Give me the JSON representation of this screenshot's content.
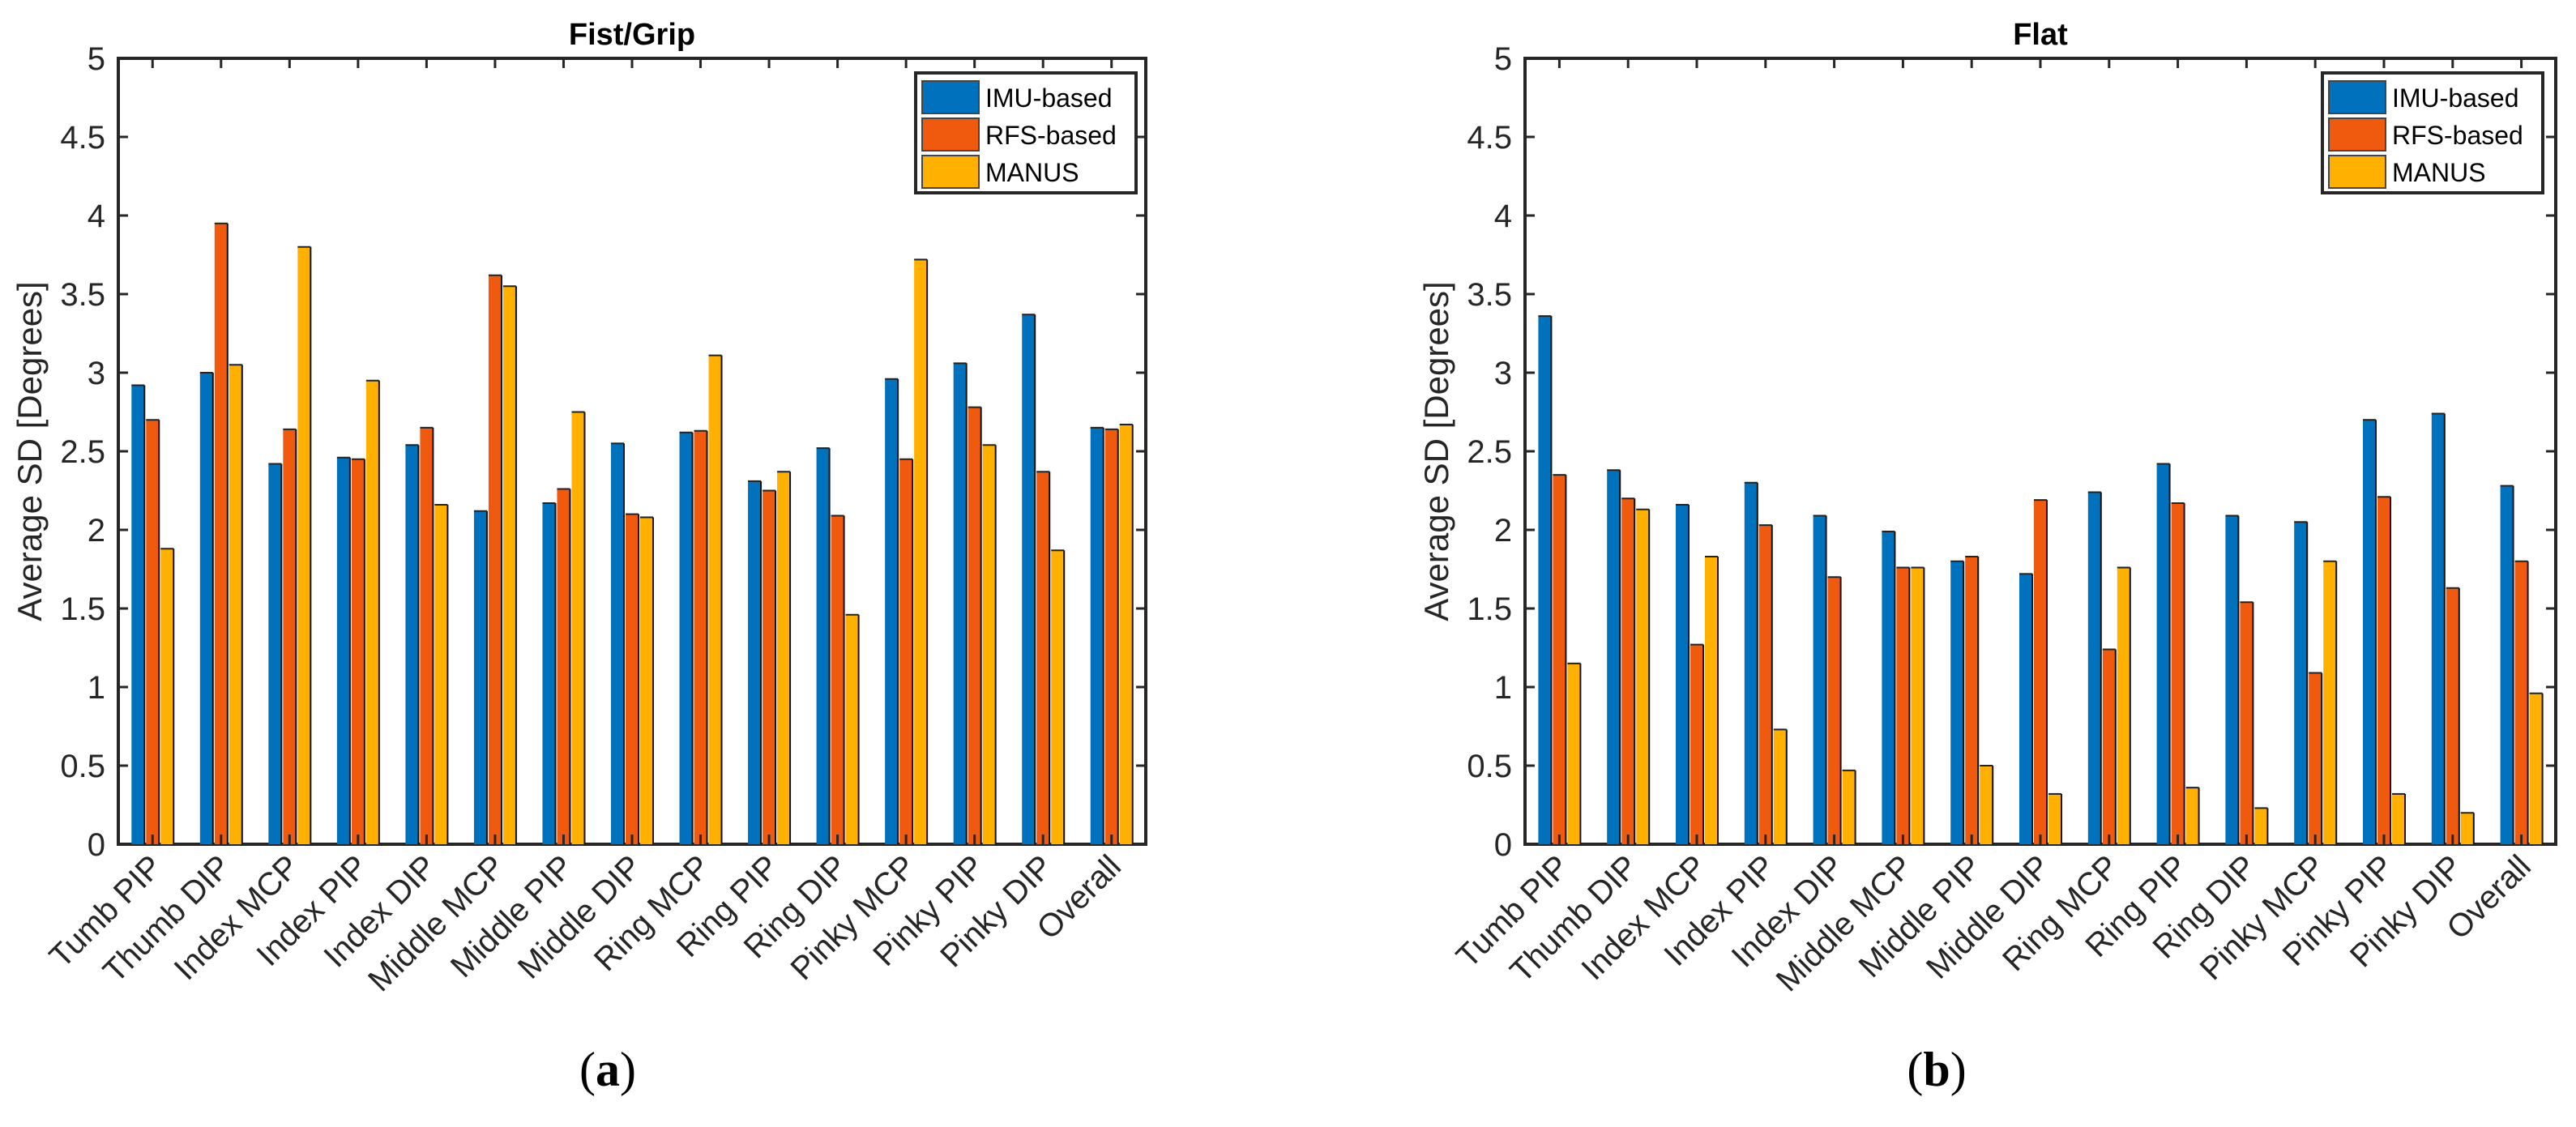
{
  "chart_data": [
    {
      "type": "bar",
      "title": "Fist/Grip",
      "panel_label": "a",
      "xlabel": "",
      "ylabel": "Average SD [Degrees]",
      "ylim": [
        0,
        5
      ],
      "yticks": [
        "0",
        "0.5",
        "1",
        "1.5",
        "2",
        "2.5",
        "3",
        "3.5",
        "4",
        "4.5",
        "5"
      ],
      "legend_position": "top-right",
      "categories": [
        "Tumb PIP",
        "Thumb DIP",
        "Index MCP",
        "Index PIP",
        "Index DIP",
        "Middle MCP",
        "Middle PIP",
        "Middle DIP",
        "Ring MCP",
        "Ring PIP",
        "Ring DIP",
        "Pinky MCP",
        "Pinky PIP",
        "Pinky DIP",
        "Overall"
      ],
      "series": [
        {
          "name": "IMU-based",
          "color": "#0072BD",
          "values": [
            2.92,
            3.0,
            2.42,
            2.46,
            2.54,
            2.12,
            2.17,
            2.55,
            2.62,
            2.31,
            2.52,
            2.96,
            3.06,
            3.37,
            2.65
          ]
        },
        {
          "name": "RFS-based",
          "color": "#F05A0E",
          "values": [
            2.7,
            3.95,
            2.64,
            2.45,
            2.65,
            3.62,
            2.26,
            2.1,
            2.63,
            2.25,
            2.09,
            2.45,
            2.78,
            2.37,
            2.64
          ]
        },
        {
          "name": "MANUS",
          "color": "#FFB000",
          "values": [
            1.88,
            3.05,
            3.8,
            2.95,
            2.16,
            3.55,
            2.75,
            2.08,
            3.11,
            2.37,
            1.46,
            3.72,
            2.54,
            1.87,
            2.67
          ]
        }
      ]
    },
    {
      "type": "bar",
      "title": "Flat",
      "panel_label": "b",
      "xlabel": "",
      "ylabel": "Average SD [Degrees]",
      "ylim": [
        0,
        5
      ],
      "yticks": [
        "0",
        "0.5",
        "1",
        "1.5",
        "2",
        "2.5",
        "3",
        "3.5",
        "4",
        "4.5",
        "5"
      ],
      "legend_position": "top-right",
      "categories": [
        "Tumb PIP",
        "Thumb DIP",
        "Index MCP",
        "Index PIP",
        "Index DIP",
        "Middle MCP",
        "Middle PIP",
        "Middle DIP",
        "Ring MCP",
        "Ring PIP",
        "Ring DIP",
        "Pinky MCP",
        "Pinky PIP",
        "Pinky DIP",
        "Overall"
      ],
      "series": [
        {
          "name": "IMU-based",
          "color": "#0072BD",
          "values": [
            3.36,
            2.38,
            2.16,
            2.3,
            2.09,
            1.99,
            1.8,
            1.72,
            2.24,
            2.42,
            2.09,
            2.05,
            2.7,
            2.74,
            2.28
          ]
        },
        {
          "name": "RFS-based",
          "color": "#F05A0E",
          "values": [
            2.35,
            2.2,
            1.27,
            2.03,
            1.7,
            1.76,
            1.83,
            2.19,
            1.24,
            2.17,
            1.54,
            1.09,
            2.21,
            1.63,
            1.8
          ]
        },
        {
          "name": "MANUS",
          "color": "#FFB000",
          "values": [
            1.15,
            2.13,
            1.83,
            0.73,
            0.47,
            1.76,
            0.5,
            0.32,
            1.76,
            0.36,
            0.23,
            1.8,
            0.32,
            0.2,
            0.96
          ]
        }
      ]
    }
  ]
}
